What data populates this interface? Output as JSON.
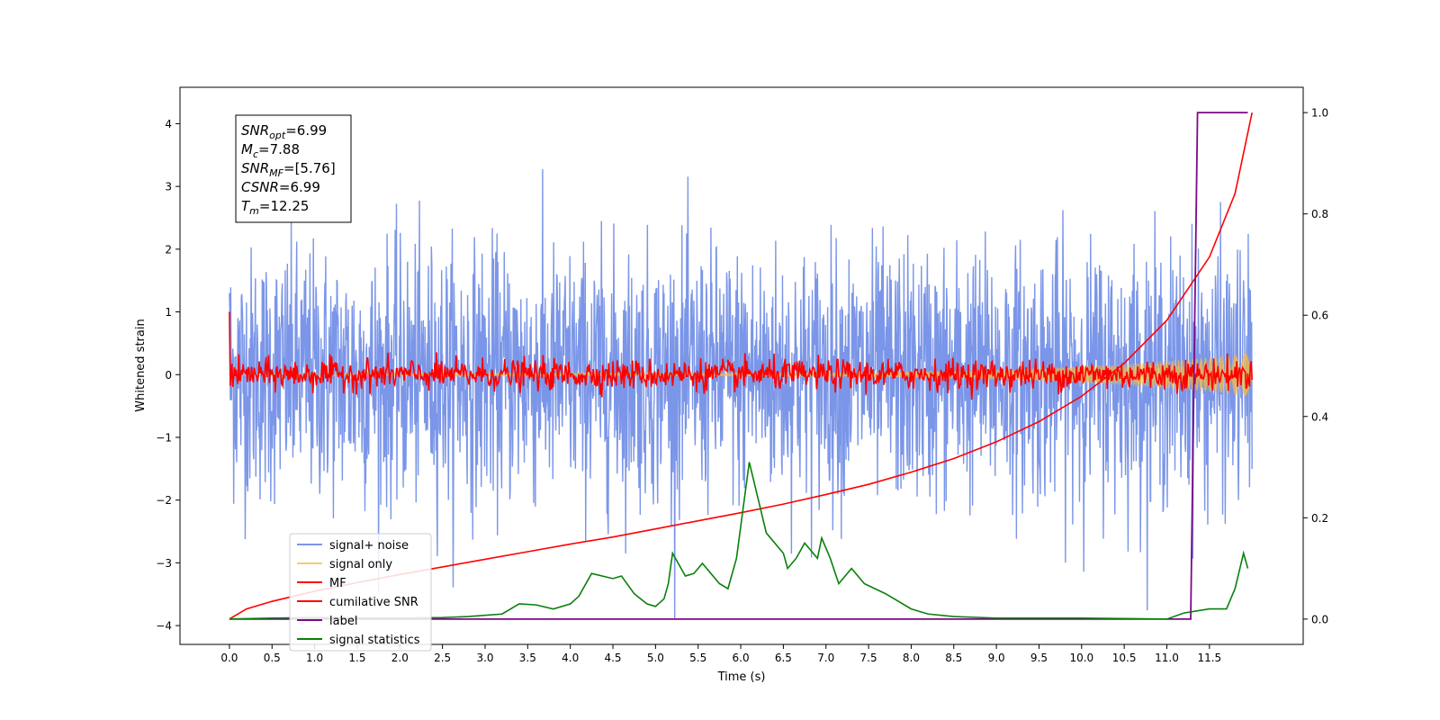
{
  "chart_data": {
    "type": "line",
    "title": "",
    "xlabel": "Time (s)",
    "ylabel": "Whitened strain",
    "y2label": "",
    "xlim": [
      -0.58,
      12.6
    ],
    "ylim": [
      -4.3,
      4.58
    ],
    "y2lim": [
      -0.05,
      1.05
    ],
    "x_ticks": [
      0.0,
      0.5,
      1.0,
      1.5,
      2.0,
      2.5,
      3.0,
      3.5,
      4.0,
      4.5,
      5.0,
      5.5,
      6.0,
      6.5,
      7.0,
      7.5,
      8.0,
      8.5,
      9.0,
      9.5,
      10.0,
      10.5,
      11.0,
      11.5
    ],
    "x_tick_labels": [
      "0.0",
      "0.5",
      "1.0",
      "1.5",
      "2.0",
      "2.5",
      "3.0",
      "3.5",
      "4.0",
      "4.5",
      "5.0",
      "5.5",
      "6.0",
      "6.5",
      "7.0",
      "7.5",
      "8.0",
      "8.5",
      "9.0",
      "9.5",
      "10.0",
      "10.5",
      "11.0",
      "11.5"
    ],
    "y_ticks": [
      -4,
      -3,
      -2,
      -1,
      0,
      1,
      2,
      3,
      4
    ],
    "y_tick_labels": [
      "−4",
      "−3",
      "−2",
      "−1",
      "0",
      "1",
      "2",
      "3",
      "4"
    ],
    "y2_ticks": [
      0.0,
      0.2,
      0.4,
      0.6,
      0.8,
      1.0
    ],
    "y2_tick_labels": [
      "0.0",
      "0.2",
      "0.4",
      "0.6",
      "0.8",
      "1.0"
    ],
    "grid": false,
    "legend_position": "lower-left",
    "series": [
      {
        "name": "signal+ noise",
        "axis": "left",
        "color": "#7b96e8",
        "kind": "noise",
        "t_range": [
          0.0,
          12.0
        ],
        "samples": 2400,
        "sigma": 1.0,
        "y_range": [
          -3.9,
          4.18
        ]
      },
      {
        "name": "signal only",
        "axis": "left",
        "color": "#f5b942",
        "kind": "chirp",
        "t_range": [
          0.0,
          12.0
        ],
        "amplitude_start": 0.02,
        "amplitude_end": 0.35
      },
      {
        "name": "MF",
        "axis": "left",
        "color": "#ff0000",
        "kind": "noise",
        "t_range": [
          0.0,
          12.0
        ],
        "samples": 1200,
        "sigma": 0.12,
        "y_range": [
          -0.4,
          1.0
        ]
      },
      {
        "name": "cumilative SNR",
        "axis": "right",
        "color": "#ff0000",
        "points": [
          [
            0.0,
            0.0
          ],
          [
            0.2,
            0.02
          ],
          [
            0.5,
            0.035
          ],
          [
            1.0,
            0.055
          ],
          [
            1.5,
            0.072
          ],
          [
            2.0,
            0.088
          ],
          [
            2.5,
            0.103
          ],
          [
            3.0,
            0.118
          ],
          [
            3.5,
            0.133
          ],
          [
            4.0,
            0.148
          ],
          [
            4.5,
            0.162
          ],
          [
            5.0,
            0.178
          ],
          [
            5.5,
            0.194
          ],
          [
            6.0,
            0.21
          ],
          [
            6.5,
            0.227
          ],
          [
            7.0,
            0.246
          ],
          [
            7.5,
            0.266
          ],
          [
            8.0,
            0.29
          ],
          [
            8.5,
            0.317
          ],
          [
            9.0,
            0.35
          ],
          [
            9.5,
            0.39
          ],
          [
            10.0,
            0.44
          ],
          [
            10.5,
            0.505
          ],
          [
            11.0,
            0.59
          ],
          [
            11.5,
            0.715
          ],
          [
            11.8,
            0.84
          ],
          [
            12.0,
            1.0
          ]
        ]
      },
      {
        "name": "label",
        "axis": "right",
        "color": "#7b0a85",
        "points": [
          [
            0.0,
            0.0
          ],
          [
            11.28,
            0.0
          ],
          [
            11.36,
            1.0
          ],
          [
            11.95,
            1.0
          ]
        ]
      },
      {
        "name": "signal statistics",
        "axis": "right",
        "color": "#0a800a",
        "points": [
          [
            0.0,
            0.0
          ],
          [
            0.5,
            0.002
          ],
          [
            1.0,
            0.003
          ],
          [
            1.5,
            0.002
          ],
          [
            2.0,
            0.002
          ],
          [
            2.5,
            0.003
          ],
          [
            2.8,
            0.005
          ],
          [
            3.2,
            0.01
          ],
          [
            3.4,
            0.03
          ],
          [
            3.6,
            0.028
          ],
          [
            3.8,
            0.02
          ],
          [
            4.0,
            0.03
          ],
          [
            4.1,
            0.045
          ],
          [
            4.25,
            0.09
          ],
          [
            4.5,
            0.08
          ],
          [
            4.6,
            0.085
          ],
          [
            4.75,
            0.05
          ],
          [
            4.9,
            0.03
          ],
          [
            5.0,
            0.025
          ],
          [
            5.1,
            0.04
          ],
          [
            5.15,
            0.07
          ],
          [
            5.2,
            0.13
          ],
          [
            5.35,
            0.085
          ],
          [
            5.45,
            0.09
          ],
          [
            5.55,
            0.11
          ],
          [
            5.75,
            0.07
          ],
          [
            5.85,
            0.06
          ],
          [
            5.95,
            0.12
          ],
          [
            6.1,
            0.31
          ],
          [
            6.2,
            0.24
          ],
          [
            6.3,
            0.17
          ],
          [
            6.5,
            0.13
          ],
          [
            6.55,
            0.1
          ],
          [
            6.65,
            0.12
          ],
          [
            6.75,
            0.15
          ],
          [
            6.9,
            0.12
          ],
          [
            6.95,
            0.16
          ],
          [
            7.05,
            0.12
          ],
          [
            7.15,
            0.07
          ],
          [
            7.3,
            0.1
          ],
          [
            7.45,
            0.07
          ],
          [
            7.7,
            0.05
          ],
          [
            8.0,
            0.02
          ],
          [
            8.2,
            0.01
          ],
          [
            8.5,
            0.005
          ],
          [
            9.0,
            0.002
          ],
          [
            10.0,
            0.002
          ],
          [
            11.0,
            0.0
          ],
          [
            11.2,
            0.012
          ],
          [
            11.5,
            0.02
          ],
          [
            11.7,
            0.02
          ],
          [
            11.8,
            0.06
          ],
          [
            11.9,
            0.13
          ],
          [
            11.95,
            0.1
          ]
        ]
      }
    ],
    "annotation": {
      "lines": [
        {
          "base": "SNR",
          "sub": "opt",
          "value": "=6.99"
        },
        {
          "base": "M",
          "sub": "c",
          "value": "=7.88"
        },
        {
          "base": "SNR",
          "sub": "MF",
          "value": "=[5.76]"
        },
        {
          "base": "CSNR",
          "sub": "",
          "value": "=6.99"
        },
        {
          "base": "T",
          "sub": "m",
          "value": "=12.25"
        }
      ]
    }
  }
}
